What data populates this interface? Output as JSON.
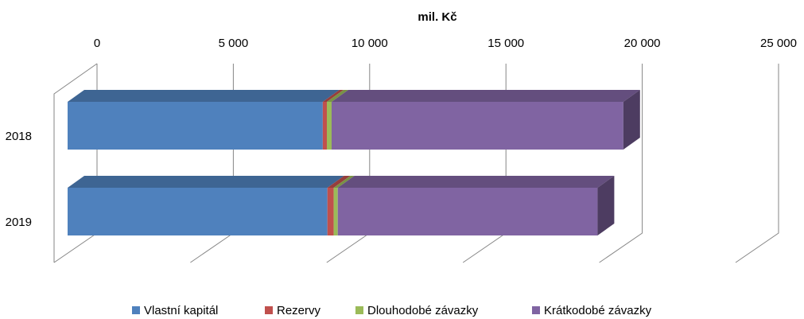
{
  "chart_data": {
    "type": "bar",
    "orientation": "horizontal",
    "stacked": true,
    "three_d": true,
    "axis_title": "mil. Kč",
    "categories": [
      "2018",
      "2019"
    ],
    "series": [
      {
        "name": "Vlastní kapitál",
        "color": "#4f81bd",
        "values": [
          9360,
          9530
        ]
      },
      {
        "name": "Rezervy",
        "color": "#c0504d",
        "values": [
          150,
          230
        ]
      },
      {
        "name": "Dlouhodobé závazky",
        "color": "#9bbb59",
        "values": [
          175,
          150
        ]
      },
      {
        "name": "Krátkodobé závazky",
        "color": "#8064a2",
        "values": [
          10700,
          9530
        ]
      }
    ],
    "xlim": [
      0,
      25000
    ],
    "xticks": [
      0,
      {
        "value": 5000,
        "label": "5 000"
      },
      {
        "value": 10000,
        "label": "10 000"
      },
      {
        "value": 15000,
        "label": "15 000"
      },
      {
        "value": 20000,
        "label": "20 000"
      },
      {
        "value": 25000,
        "label": "25 000"
      }
    ],
    "grid": true,
    "legend": "bottom"
  }
}
